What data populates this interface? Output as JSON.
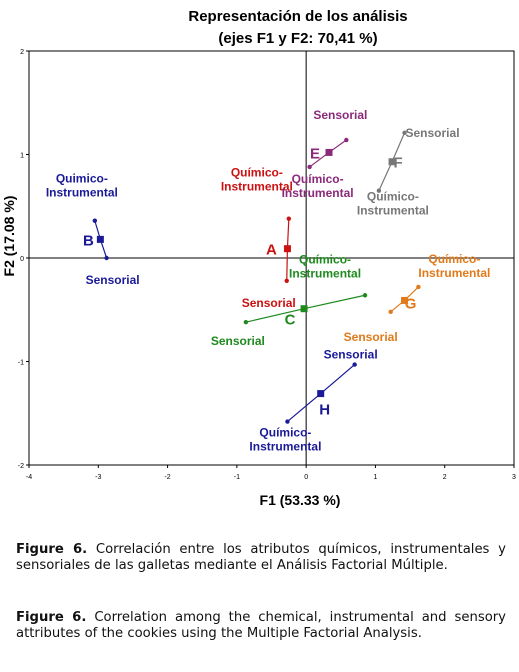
{
  "chart_data": {
    "type": "scatter",
    "title": "Representación de los análisis",
    "subtitle": "(ejes F1 y F2: 70,41 %)",
    "xlabel": "F1 (53.33 %)",
    "ylabel": "F2 (17.08 %)",
    "xlim": [
      -4,
      3
    ],
    "ylim": [
      -2,
      2
    ],
    "x_ticks": [
      "-4",
      "-3",
      "-2",
      "-1",
      "0",
      "1",
      "2",
      "3"
    ],
    "y_ticks": [
      "2",
      "1",
      "0",
      "-1",
      "-2"
    ],
    "grid": false,
    "groups": [
      {
        "id": "B",
        "color": "#1a1a99",
        "center": {
          "x": -2.97,
          "y": 0.18
        },
        "points": [
          {
            "label": "Quimico-\nInstrumental",
            "x": -3.05,
            "y": 0.36
          },
          {
            "label": "Sensorial",
            "x": -2.88,
            "y": 0.0
          }
        ]
      },
      {
        "id": "A",
        "color": "#cc1111",
        "center": {
          "x": -0.27,
          "y": 0.09
        },
        "points": [
          {
            "label": "Químico-\nInstrumental",
            "x": -0.25,
            "y": 0.38
          },
          {
            "label": "Sensorial",
            "x": -0.28,
            "y": -0.22
          }
        ]
      },
      {
        "id": "E",
        "color": "#8b2a7a",
        "center": {
          "x": 0.33,
          "y": 1.02
        },
        "points": [
          {
            "label": "Sensorial",
            "x": 0.58,
            "y": 1.14
          },
          {
            "label": "Químico-\nInstrumental",
            "x": 0.05,
            "y": 0.88
          }
        ]
      },
      {
        "id": "F",
        "color": "#777777",
        "center": {
          "x": 1.24,
          "y": 0.93
        },
        "points": [
          {
            "label": "Sensorial",
            "x": 1.42,
            "y": 1.21
          },
          {
            "label": "Químico-\nInstrumental",
            "x": 1.05,
            "y": 0.65
          }
        ]
      },
      {
        "id": "C",
        "color": "#1e8a1e",
        "center": {
          "x": -0.03,
          "y": -0.49
        },
        "points": [
          {
            "label": "Químico-\nInstrumental",
            "x": 0.85,
            "y": -0.36
          },
          {
            "label": "Sensorial",
            "x": -0.87,
            "y": -0.62
          }
        ]
      },
      {
        "id": "G",
        "color": "#e07a1a",
        "center": {
          "x": 1.42,
          "y": -0.41
        },
        "points": [
          {
            "label": "Químico-\nInstrumental",
            "x": 1.62,
            "y": -0.28
          },
          {
            "label": "Sensorial",
            "x": 1.22,
            "y": -0.52
          }
        ]
      },
      {
        "id": "H",
        "color": "#1a1a99",
        "center": {
          "x": 0.21,
          "y": -1.31
        },
        "points": [
          {
            "label": "Sensorial",
            "x": 0.7,
            "y": -1.03
          },
          {
            "label": "Químico-\nInstrumental",
            "x": -0.27,
            "y": -1.58
          }
        ]
      }
    ]
  },
  "captions": {
    "es": {
      "bold": "Figure 6.",
      "text": " Correlación entre los atributos químicos, instrumentales y sensoriales de las galletas mediante el Análisis Factorial Múltiple."
    },
    "en": {
      "bold": "Figure 6.",
      "text": " Correlation among the chemical, instrumental and sensory attributes of the cookies using the Multiple Factorial Analysis."
    }
  }
}
